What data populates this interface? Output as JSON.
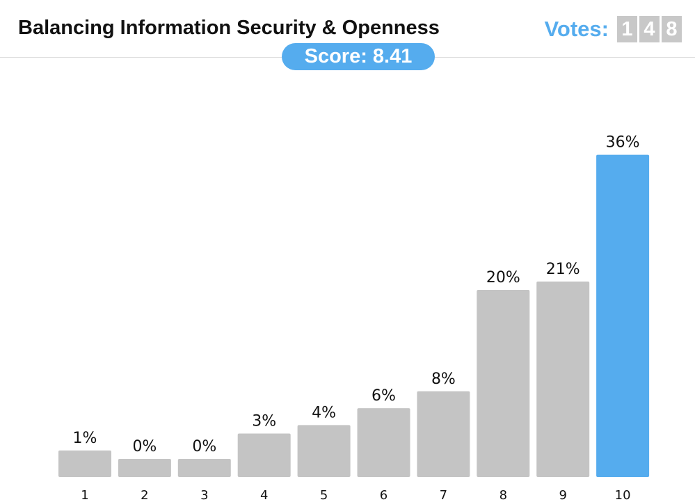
{
  "header": {
    "title": "Balancing Information Security & Openness",
    "votes_label": "Votes:",
    "votes_digits": [
      "1",
      "4",
      "8"
    ],
    "score_label": "Score: 8.41"
  },
  "colors": {
    "accent": "#55acee",
    "bar_default": "#c4c4c4",
    "digit_bg": "#c8c8c8"
  },
  "chart_data": {
    "type": "bar",
    "title": "",
    "xlabel": "",
    "ylabel": "",
    "categories": [
      "1",
      "2",
      "3",
      "4",
      "5",
      "6",
      "7",
      "8",
      "9",
      "10"
    ],
    "values": [
      1,
      0,
      0,
      3,
      4,
      6,
      8,
      20,
      21,
      36
    ],
    "labels": [
      "1%",
      "0%",
      "0%",
      "3%",
      "4%",
      "6%",
      "8%",
      "20%",
      "21%",
      "36%"
    ],
    "unit": "%",
    "highlight_category": "10",
    "grid": false,
    "legend": "none"
  }
}
